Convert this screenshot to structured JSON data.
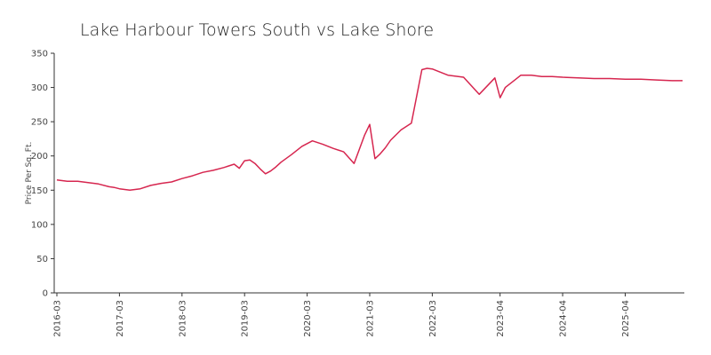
{
  "chart_data": {
    "type": "line",
    "title": "Lake Harbour Towers South vs Lake Shore",
    "xlabel": "",
    "ylabel": "Price Per Sq. Ft.",
    "ylim": [
      0,
      350
    ],
    "yticks": [
      0,
      50,
      100,
      150,
      200,
      250,
      300,
      350
    ],
    "xlim": [
      "2016-03",
      "2026-03"
    ],
    "xticks": [
      "2016-03",
      "2017-03",
      "2018-03",
      "2019-03",
      "2020-03",
      "2021-03",
      "2022-03",
      "2023-04",
      "2024-04",
      "2025-04"
    ],
    "grid": false,
    "legend": "none",
    "color": "#d6264f",
    "series": [
      {
        "x": [
          "2016-03",
          "2016-05",
          "2016-07",
          "2016-09",
          "2016-11",
          "2017-01",
          "2017-02",
          "2017-03",
          "2017-05",
          "2017-07",
          "2017-09",
          "2017-11",
          "2018-01",
          "2018-03",
          "2018-05",
          "2018-07",
          "2018-09",
          "2018-11",
          "2019-01",
          "2019-02",
          "2019-03",
          "2019-04",
          "2019-05",
          "2019-06",
          "2019-07",
          "2019-08",
          "2019-09",
          "2019-10",
          "2019-12",
          "2020-02",
          "2020-04",
          "2020-06",
          "2020-08",
          "2020-10",
          "2020-12",
          "2021-02",
          "2021-03",
          "2021-04",
          "2021-05",
          "2021-06",
          "2021-07",
          "2021-09",
          "2021-11",
          "2022-01",
          "2022-02",
          "2022-03",
          "2022-04",
          "2022-06",
          "2022-09",
          "2022-12",
          "2023-03",
          "2023-04",
          "2023-05",
          "2023-06",
          "2023-07",
          "2023-08",
          "2023-10",
          "2023-12",
          "2024-02",
          "2024-04",
          "2024-07",
          "2024-10",
          "2025-01",
          "2025-04",
          "2025-07",
          "2025-10",
          "2026-01",
          "2026-03"
        ],
        "values": [
          165,
          163,
          163,
          161,
          159,
          155,
          154,
          152,
          150,
          152,
          157,
          160,
          162,
          167,
          171,
          176,
          179,
          183,
          188,
          182,
          193,
          194,
          189,
          181,
          174,
          178,
          184,
          191,
          202,
          214,
          222,
          217,
          211,
          206,
          189,
          230,
          246,
          196,
          203,
          212,
          223,
          238,
          248,
          326,
          328,
          327,
          324,
          318,
          315,
          290,
          314,
          285,
          300,
          306,
          312,
          318,
          318,
          316,
          316,
          315,
          314,
          313,
          313,
          312,
          312,
          311,
          310,
          310
        ]
      }
    ]
  }
}
